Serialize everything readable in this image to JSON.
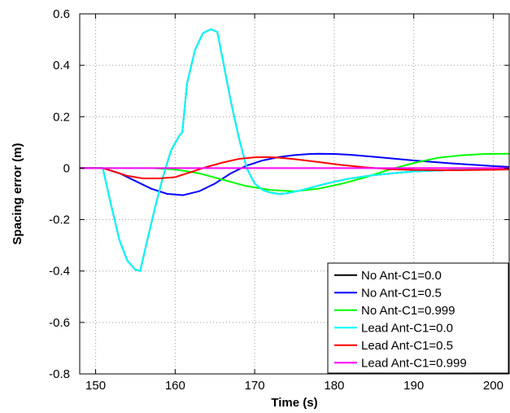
{
  "chart_data": {
    "type": "line",
    "title": "",
    "xlabel": "Time (s)",
    "ylabel": "Spacing error (m)",
    "xlim": [
      148,
      202
    ],
    "ylim": [
      -0.8,
      0.6
    ],
    "xticks": [
      150,
      160,
      170,
      180,
      190,
      200
    ],
    "yticks": [
      -0.8,
      -0.6,
      -0.4,
      -0.2,
      0,
      0.2,
      0.4,
      0.6
    ],
    "xtick_labels": [
      "150",
      "160",
      "170",
      "180",
      "190",
      "200"
    ],
    "ytick_labels": [
      "-0.8",
      "-0.6",
      "-0.4",
      "-0.2",
      "0",
      "0.2",
      "0.4",
      "0.6"
    ],
    "grid": true,
    "legend_position": "bottom-right",
    "series": [
      {
        "name": "No Ant-C1=0.0",
        "color": "#000000",
        "x": [
          148,
          150.9,
          152,
          153,
          154,
          155,
          155.6,
          156.5,
          157.5,
          158.5,
          159.5,
          160.5,
          160.9,
          161.5,
          162.5,
          163.5,
          164.5,
          165.3,
          166,
          167,
          168,
          169,
          170,
          171,
          172,
          173,
          174,
          176,
          178,
          180,
          182,
          185,
          188,
          190,
          195,
          200,
          202
        ],
        "y": [
          0,
          0,
          -0.15,
          -0.28,
          -0.36,
          -0.395,
          -0.4,
          -0.28,
          -0.15,
          -0.03,
          0.07,
          0.125,
          0.14,
          0.33,
          0.46,
          0.525,
          0.54,
          0.53,
          0.42,
          0.26,
          0.12,
          0.0,
          -0.06,
          -0.085,
          -0.095,
          -0.1,
          -0.098,
          -0.085,
          -0.068,
          -0.053,
          -0.04,
          -0.027,
          -0.018,
          -0.013,
          -0.007,
          -0.004,
          -0.003
        ]
      },
      {
        "name": "No Ant-C1=0.5",
        "color": "#0000ff",
        "x": [
          148,
          150.9,
          153,
          155,
          157,
          159,
          161,
          163,
          165,
          167,
          169,
          171,
          173,
          175,
          177,
          178,
          180,
          182,
          185,
          190,
          195,
          200,
          202
        ],
        "y": [
          0,
          0,
          -0.02,
          -0.05,
          -0.08,
          -0.1,
          -0.105,
          -0.09,
          -0.06,
          -0.02,
          0.01,
          0.03,
          0.043,
          0.051,
          0.055,
          0.056,
          0.055,
          0.052,
          0.044,
          0.03,
          0.018,
          0.008,
          0.005
        ]
      },
      {
        "name": "No Ant-C1=0.999",
        "color": "#00ff00",
        "x": [
          148,
          157,
          160,
          163,
          166,
          169,
          172,
          175,
          178,
          181,
          184,
          187,
          190,
          193,
          196,
          199,
          202
        ],
        "y": [
          0,
          0,
          -0.005,
          -0.02,
          -0.045,
          -0.07,
          -0.085,
          -0.09,
          -0.08,
          -0.06,
          -0.035,
          -0.005,
          0.02,
          0.04,
          0.05,
          0.055,
          0.056
        ]
      },
      {
        "name": "Lead Ant-C1=0.0",
        "color": "#00ffff",
        "x": [
          148,
          150.9,
          152,
          153,
          154,
          155,
          155.6,
          156.5,
          157.5,
          158.5,
          159.5,
          160.5,
          160.9,
          161.5,
          162.5,
          163.5,
          164.5,
          165.3,
          166,
          167,
          168,
          169,
          170,
          171,
          172,
          173,
          174,
          176,
          178,
          180,
          182,
          185,
          188,
          190,
          195,
          200,
          202
        ],
        "y": [
          0,
          0,
          -0.15,
          -0.28,
          -0.36,
          -0.395,
          -0.4,
          -0.28,
          -0.15,
          -0.03,
          0.07,
          0.125,
          0.14,
          0.33,
          0.46,
          0.525,
          0.54,
          0.53,
          0.42,
          0.26,
          0.12,
          0.0,
          -0.06,
          -0.085,
          -0.095,
          -0.1,
          -0.098,
          -0.085,
          -0.068,
          -0.053,
          -0.04,
          -0.027,
          -0.018,
          -0.013,
          -0.007,
          -0.004,
          -0.003
        ]
      },
      {
        "name": "Lead Ant-C1=0.5",
        "color": "#ff0000",
        "x": [
          148,
          150.9,
          152,
          154,
          156,
          158,
          160,
          162,
          164,
          166,
          168,
          170,
          171.5,
          173,
          175,
          178,
          181,
          184,
          187,
          190,
          195,
          200,
          202
        ],
        "y": [
          0,
          0,
          -0.01,
          -0.03,
          -0.04,
          -0.04,
          -0.035,
          -0.015,
          0.005,
          0.022,
          0.036,
          0.042,
          0.043,
          0.041,
          0.035,
          0.024,
          0.012,
          0.003,
          -0.004,
          -0.007,
          -0.008,
          -0.006,
          -0.005
        ]
      },
      {
        "name": "Lead Ant-C1=0.999",
        "color": "#ff00ff",
        "x": [
          148,
          202
        ],
        "y": [
          0,
          0
        ]
      }
    ]
  }
}
